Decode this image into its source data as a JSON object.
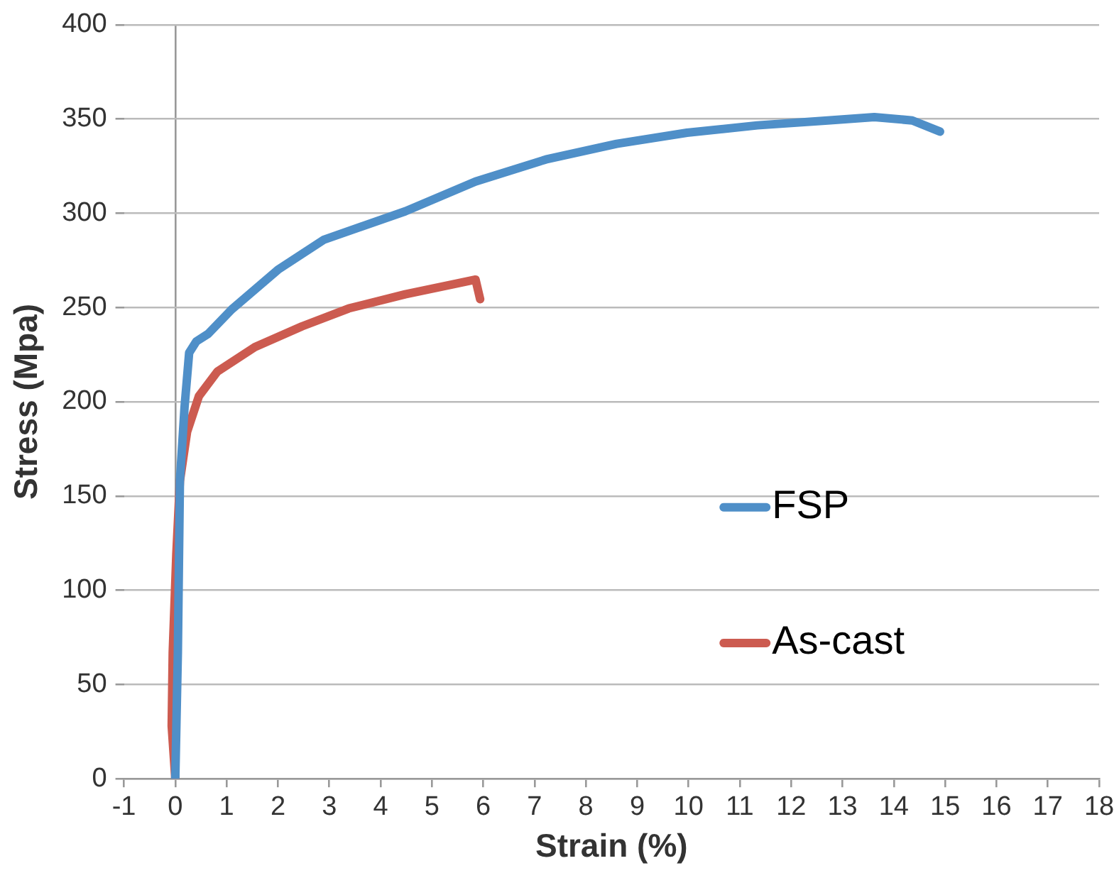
{
  "chart_data": {
    "type": "line",
    "xlabel": "Strain (%)",
    "ylabel": "Stress (Mpa)",
    "xlim": [
      -1,
      18
    ],
    "xticks": [
      -1,
      0,
      1,
      2,
      3,
      4,
      5,
      6,
      7,
      8,
      9,
      10,
      11,
      12,
      13,
      14,
      15,
      16,
      17,
      18
    ],
    "ylim": [
      0,
      400
    ],
    "yticks": [
      0,
      50,
      100,
      150,
      200,
      250,
      300,
      350,
      400
    ],
    "grid": "y",
    "legend": "right",
    "marker": "none",
    "line_style": "solid",
    "series": [
      {
        "name": "FSP",
        "color": "#4f8fc8",
        "x": [
          0,
          0.05,
          0.09,
          0.18,
          0.27,
          0.41,
          0.64,
          1.1,
          2.0,
          2.9,
          4.48,
          5.85,
          7.22,
          8.6,
          9.97,
          11.34,
          12.71,
          13.62,
          14.36,
          14.9
        ],
        "values": [
          0,
          67,
          158,
          197,
          226,
          232,
          236,
          249,
          270,
          286,
          301,
          316.8,
          328.5,
          336.8,
          342.7,
          346.6,
          349.2,
          351,
          349.2,
          343.3
        ]
      },
      {
        "name": "As-cast",
        "color": "#cc5b50",
        "x": [
          0,
          -0.07,
          -0.05,
          0.02,
          0.09,
          0.23,
          0.46,
          0.82,
          1.55,
          2.47,
          3.38,
          4.48,
          5.39,
          5.85,
          5.94
        ],
        "values": [
          0,
          28,
          67,
          119,
          158,
          184,
          203,
          216,
          229,
          240,
          249.5,
          257,
          262.2,
          264.8,
          254.4
        ]
      }
    ]
  }
}
